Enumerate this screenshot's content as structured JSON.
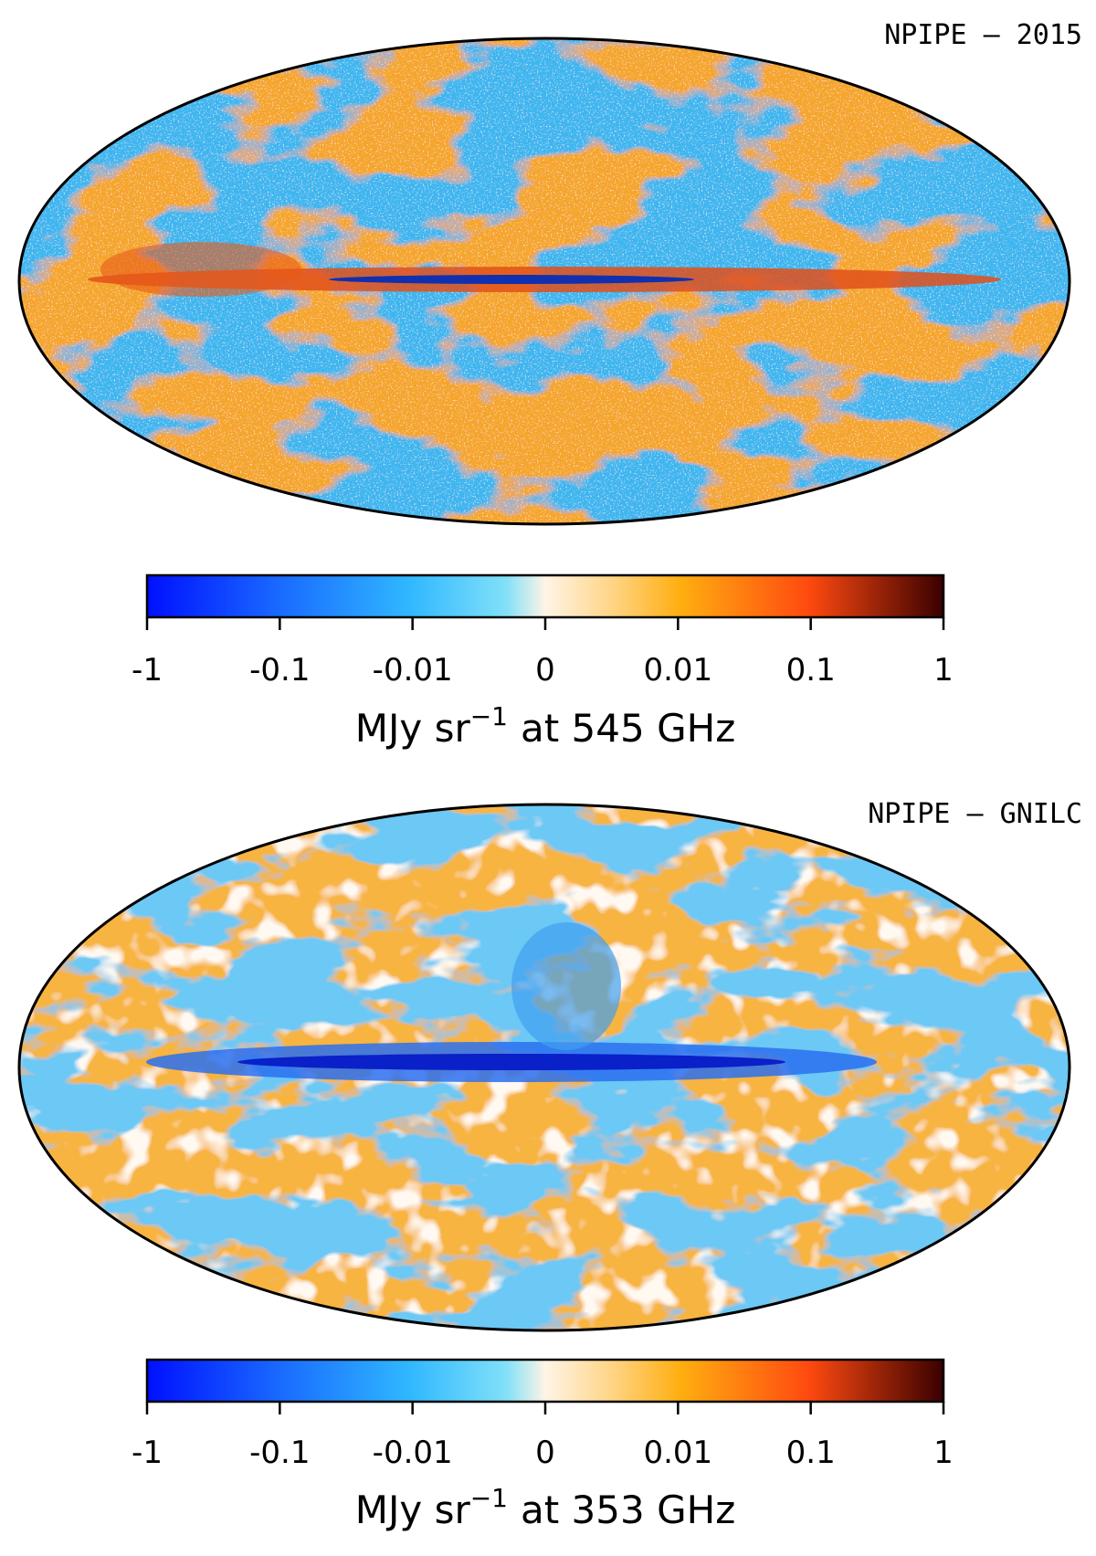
{
  "chart_data": [
    {
      "type": "map",
      "title": "NPIPE — 2015",
      "clim": [
        -1,
        1
      ],
      "scale": "symlog",
      "linthresh": 0.01,
      "colorbar_ticks": [
        -1,
        -0.1,
        -0.01,
        0,
        0.01,
        0.1,
        1
      ],
      "colorbar_label": {
        "unit": "MJy sr",
        "exponent": "−1",
        "suffix": "at 545 GHz"
      }
    },
    {
      "type": "map",
      "title": "NPIPE — GNILC",
      "clim": [
        -1,
        1
      ],
      "scale": "symlog",
      "linthresh": 0.01,
      "colorbar_ticks": [
        -1,
        -0.1,
        -0.01,
        0,
        0.01,
        0.1,
        1
      ],
      "colorbar_label": {
        "unit": "MJy sr",
        "exponent": "−1",
        "suffix": "at 353 GHz"
      }
    }
  ]
}
